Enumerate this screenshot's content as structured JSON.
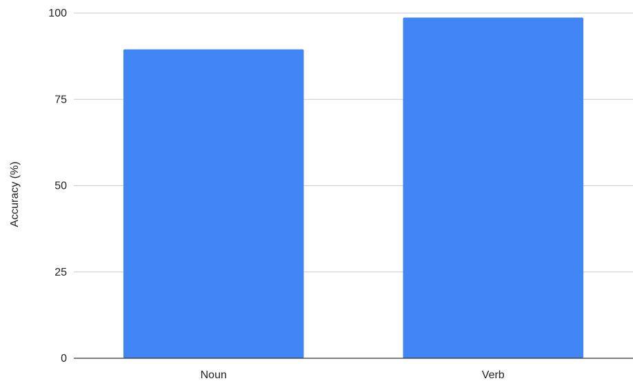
{
  "chart_data": {
    "type": "bar",
    "categories": [
      "Noun",
      "Verb"
    ],
    "values": [
      89.5,
      98.7
    ],
    "title": "",
    "xlabel": "",
    "ylabel": "Accuracy (%)",
    "ylim": [
      0,
      100
    ],
    "yticks": [
      "0",
      "25",
      "50",
      "75",
      "100"
    ],
    "grid": true,
    "legend": "none",
    "bar_color": "#4285f4",
    "gridline_color": "#cccccc",
    "axis_color": "#333333"
  }
}
